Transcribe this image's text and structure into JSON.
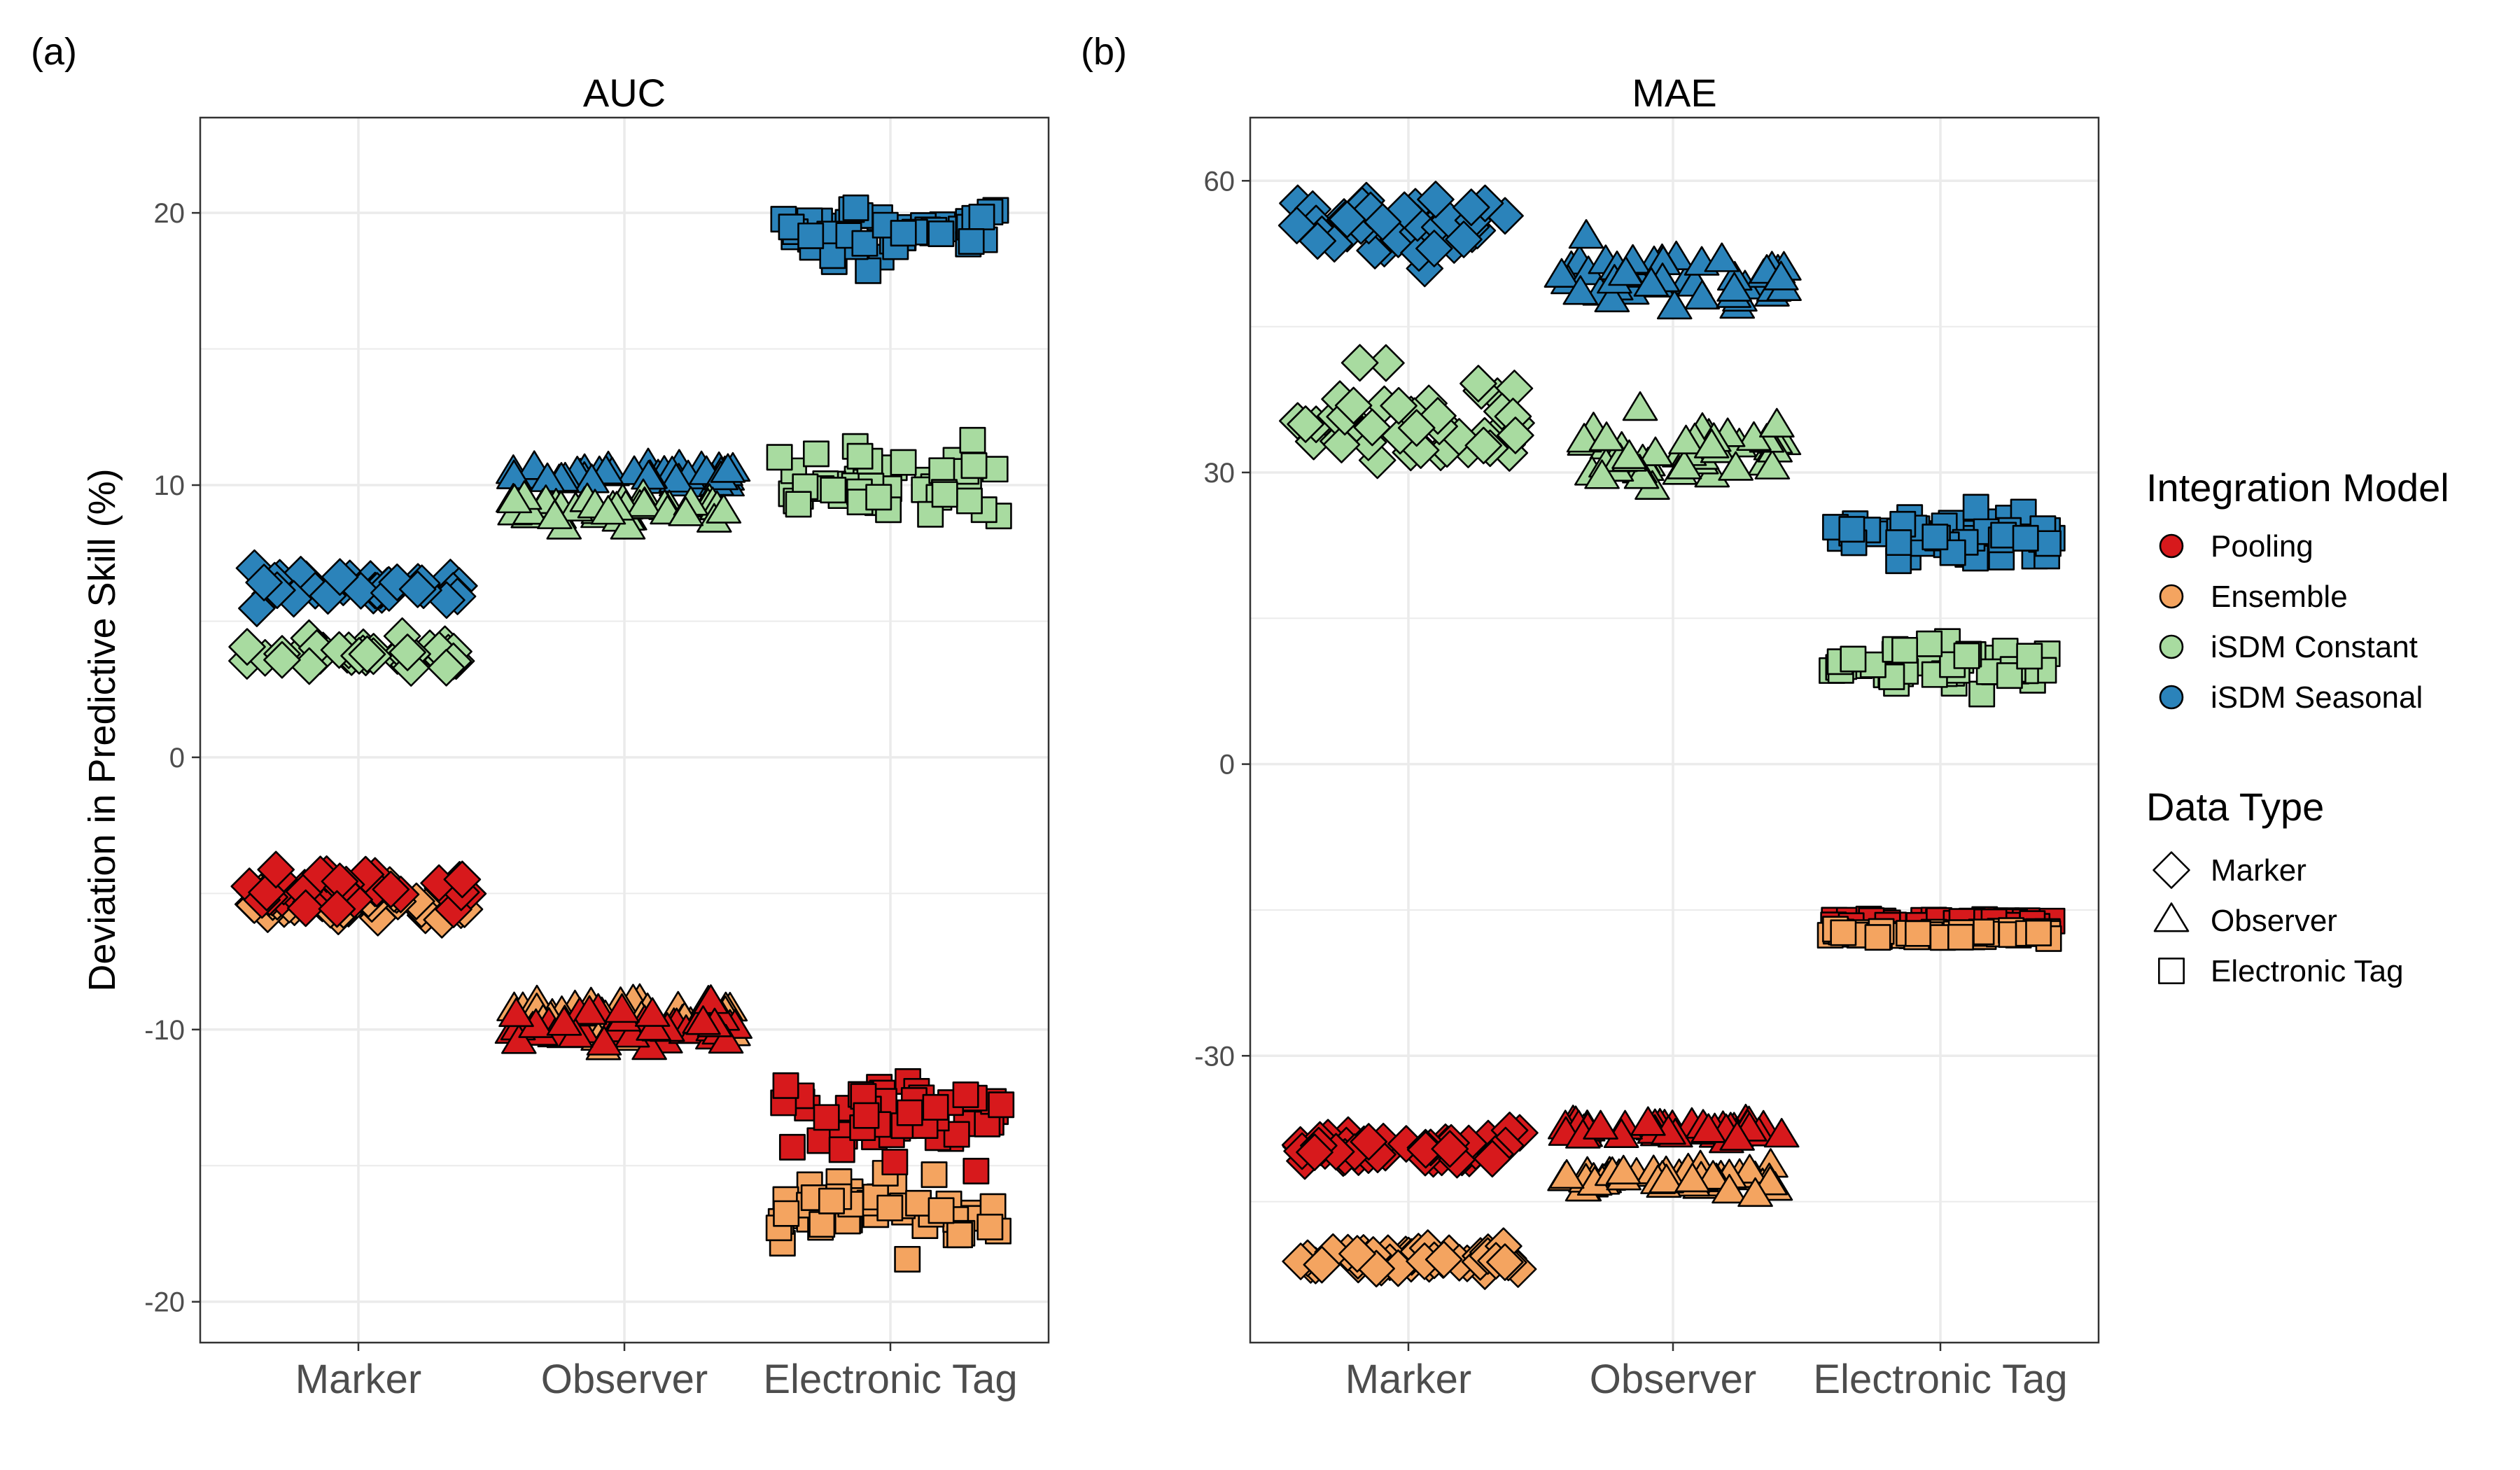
{
  "figure": {
    "ylabel": "Deviation in Predictive Skill (%)"
  },
  "colors": {
    "Pooling": "#d7191c",
    "Ensemble": "#f4a460",
    "iSDM Constant": "#a8dba0",
    "iSDM Seasonal": "#2b83ba",
    "outline": "#000000",
    "grid": "#ebebeb",
    "axis_text": "#4d4d4d"
  },
  "legend": {
    "model_title": "Integration Model",
    "models": [
      "Pooling",
      "Ensemble",
      "iSDM Constant",
      "iSDM Seasonal"
    ],
    "type_title": "Data Type",
    "types": [
      {
        "label": "Marker",
        "shape": "diamond"
      },
      {
        "label": "Observer",
        "shape": "triangle"
      },
      {
        "label": "Electronic Tag",
        "shape": "square"
      }
    ]
  },
  "chart_data": [
    {
      "type": "scatter",
      "panel_label": "(a)",
      "title": "AUC",
      "categories": [
        "Marker",
        "Observer",
        "Electronic Tag"
      ],
      "ylim": [
        -21.5,
        23.5
      ],
      "yticks": [
        20,
        10,
        0,
        -10,
        -20
      ],
      "ytick_labels": [
        "20",
        "10",
        "0",
        "-10",
        "-20"
      ],
      "minor_yticks": [
        15,
        5,
        -5,
        -15
      ],
      "grid": true,
      "series": [
        {
          "model": "iSDM Seasonal",
          "category": "Marker",
          "center": 6.2,
          "spread": 0.5,
          "n": 40
        },
        {
          "model": "iSDM Constant",
          "category": "Marker",
          "center": 3.8,
          "spread": 0.5,
          "n": 40
        },
        {
          "model": "Ensemble",
          "category": "Marker",
          "center": -5.4,
          "spread": 0.55,
          "n": 40
        },
        {
          "model": "Pooling",
          "category": "Marker",
          "center": -4.8,
          "spread": 0.7,
          "n": 40
        },
        {
          "model": "iSDM Seasonal",
          "category": "Observer",
          "center": 10.3,
          "spread": 0.4,
          "n": 50
        },
        {
          "model": "iSDM Constant",
          "category": "Observer",
          "center": 9.1,
          "spread": 0.45,
          "n": 50
        },
        {
          "model": "Ensemble",
          "category": "Observer",
          "center": -9.6,
          "spread": 0.8,
          "n": 50
        },
        {
          "model": "Pooling",
          "category": "Observer",
          "center": -9.9,
          "spread": 0.6,
          "n": 50
        },
        {
          "model": "iSDM Seasonal",
          "category": "Electronic Tag",
          "center": 19.3,
          "spread": 1.1,
          "n": 50
        },
        {
          "model": "iSDM Constant",
          "category": "Electronic Tag",
          "center": 10.0,
          "spread": 1.1,
          "n": 50
        },
        {
          "model": "Ensemble",
          "category": "Electronic Tag",
          "center": -16.8,
          "spread": 1.2,
          "n": 50
        },
        {
          "model": "Pooling",
          "category": "Electronic Tag",
          "center": -13.4,
          "spread": 1.2,
          "n": 50
        }
      ]
    },
    {
      "type": "scatter",
      "panel_label": "(b)",
      "title": "MAE",
      "categories": [
        "Marker",
        "Observer",
        "Electronic Tag"
      ],
      "ylim": [
        -59.5,
        66.5
      ],
      "yticks": [
        60,
        30,
        0,
        -30
      ],
      "ytick_labels": [
        "60",
        "30",
        "0",
        "-30"
      ],
      "minor_yticks": [
        45,
        15,
        -15,
        -45
      ],
      "grid": true,
      "series": [
        {
          "model": "iSDM Seasonal",
          "category": "Marker",
          "center": 55.5,
          "spread": 3.2,
          "n": 50
        },
        {
          "model": "iSDM Constant",
          "category": "Marker",
          "center": 35.0,
          "spread": 4.5,
          "n": 50
        },
        {
          "model": "Pooling",
          "category": "Marker",
          "center": -39.5,
          "spread": 1.3,
          "n": 50
        },
        {
          "model": "Ensemble",
          "category": "Marker",
          "center": -51.0,
          "spread": 1.0,
          "n": 50
        },
        {
          "model": "iSDM Seasonal",
          "category": "Observer",
          "center": 50.0,
          "spread": 2.8,
          "n": 50
        },
        {
          "model": "iSDM Constant",
          "category": "Observer",
          "center": 32.0,
          "spread": 3.3,
          "n": 50
        },
        {
          "model": "Pooling",
          "category": "Observer",
          "center": -37.8,
          "spread": 0.9,
          "n": 50
        },
        {
          "model": "Ensemble",
          "category": "Observer",
          "center": -43.0,
          "spread": 1.1,
          "n": 50
        },
        {
          "model": "iSDM Seasonal",
          "category": "Electronic Tag",
          "center": 23.5,
          "spread": 2.2,
          "n": 50
        },
        {
          "model": "iSDM Constant",
          "category": "Electronic Tag",
          "center": 10.0,
          "spread": 1.9,
          "n": 50
        },
        {
          "model": "Pooling",
          "category": "Electronic Tag",
          "center": -16.3,
          "spread": 0.35,
          "n": 50
        },
        {
          "model": "Ensemble",
          "category": "Electronic Tag",
          "center": -17.5,
          "spread": 0.35,
          "n": 50
        }
      ]
    }
  ]
}
